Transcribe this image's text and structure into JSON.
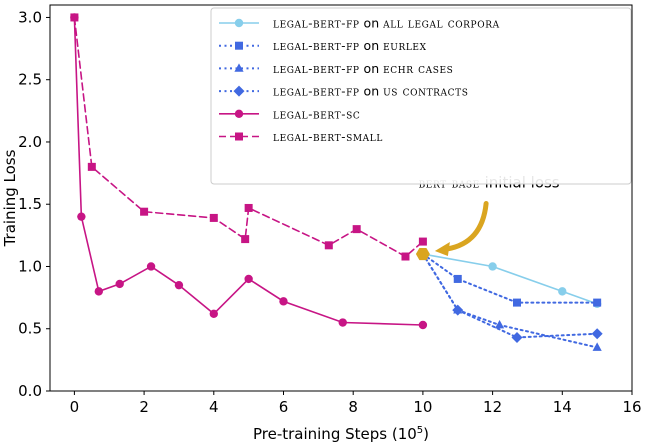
{
  "chart_data": {
    "type": "line",
    "title": "",
    "xlabel": "Pre-training Steps (10^5)",
    "xlabel_base": "Pre-training Steps (10",
    "xlabel_exp": "5",
    "xlabel_close": ")",
    "ylabel": "Training Loss",
    "xlim": [
      -0.7,
      16
    ],
    "ylim": [
      0,
      3.1
    ],
    "xticks": [
      0,
      2,
      4,
      6,
      8,
      10,
      12,
      14,
      16
    ],
    "yticks": [
      0.0,
      0.5,
      1.0,
      1.5,
      2.0,
      2.5,
      3.0
    ],
    "xtick_labels": [
      "0",
      "2",
      "4",
      "6",
      "8",
      "10",
      "12",
      "14",
      "16"
    ],
    "ytick_labels": [
      "0.0",
      "0.5",
      "1.0",
      "1.5",
      "2.0",
      "2.5",
      "3.0"
    ],
    "legend_position": "top-right",
    "series": [
      {
        "name": "LEGAL-BERT-FP on ALL LEGAL CORPORA",
        "name_sc": "legal-bert-fp",
        "name_mid": " on ",
        "name_tail": "all legal corpora",
        "color": "#87ceeb",
        "linestyle": "solid",
        "marker": "circle",
        "x": [
          10,
          12,
          14,
          15
        ],
        "y": [
          1.1,
          1.0,
          0.8,
          0.7
        ]
      },
      {
        "name": "LEGAL-BERT-FP on EURLEX",
        "name_sc": "legal-bert-fp",
        "name_mid": " on ",
        "name_tail": "eurlex",
        "color": "#4169e1",
        "linestyle": "dotted",
        "marker": "square",
        "x": [
          10,
          11,
          12.7,
          15
        ],
        "y": [
          1.1,
          0.9,
          0.71,
          0.71
        ]
      },
      {
        "name": "LEGAL-BERT-FP on ECHR CASES",
        "name_sc": "legal-bert-fp",
        "name_mid": " on ",
        "name_tail": "echr cases",
        "color": "#4169e1",
        "linestyle": "dotted",
        "marker": "triangle",
        "x": [
          10,
          11,
          12.2,
          15
        ],
        "y": [
          1.1,
          0.65,
          0.53,
          0.35
        ]
      },
      {
        "name": "LEGAL-BERT-FP on US CONTRACTS",
        "name_sc": "legal-bert-fp",
        "name_mid": " on ",
        "name_tail": "us contracts",
        "color": "#4169e1",
        "linestyle": "dotted",
        "marker": "diamond",
        "x": [
          10,
          11,
          12.7,
          15
        ],
        "y": [
          1.1,
          0.65,
          0.43,
          0.46
        ]
      },
      {
        "name": "LEGAL-BERT-SC",
        "name_sc": "legal-bert-sc",
        "name_mid": "",
        "name_tail": "",
        "color": "#c71585",
        "linestyle": "solid",
        "marker": "circle",
        "x": [
          0,
          0.2,
          0.7,
          1.3,
          2.2,
          3,
          4,
          5,
          6,
          7.7,
          10
        ],
        "y": [
          3.0,
          1.4,
          0.8,
          0.86,
          1.0,
          0.85,
          0.62,
          0.9,
          0.72,
          0.55,
          0.53
        ]
      },
      {
        "name": "LEGAL-BERT-SMALL",
        "name_sc": "legal-bert-small",
        "name_mid": "",
        "name_tail": "",
        "color": "#c71585",
        "linestyle": "dashed",
        "marker": "square",
        "x": [
          0,
          0.5,
          2,
          4,
          4.9,
          5,
          7.3,
          8.1,
          9.5,
          10
        ],
        "y": [
          3.0,
          1.8,
          1.44,
          1.39,
          1.22,
          1.47,
          1.17,
          1.3,
          1.08,
          1.2
        ]
      }
    ],
    "highlight_point": {
      "x": 10,
      "y": 1.1,
      "color": "#daa520"
    },
    "annotation": {
      "text": "BERT-BASE initial loss",
      "text_sc": "bert-base",
      "text_rest": " initial loss",
      "color": "#daa520",
      "target_x": 10,
      "target_y": 1.1,
      "label_x": 11.9,
      "label_y": 1.57
    }
  }
}
